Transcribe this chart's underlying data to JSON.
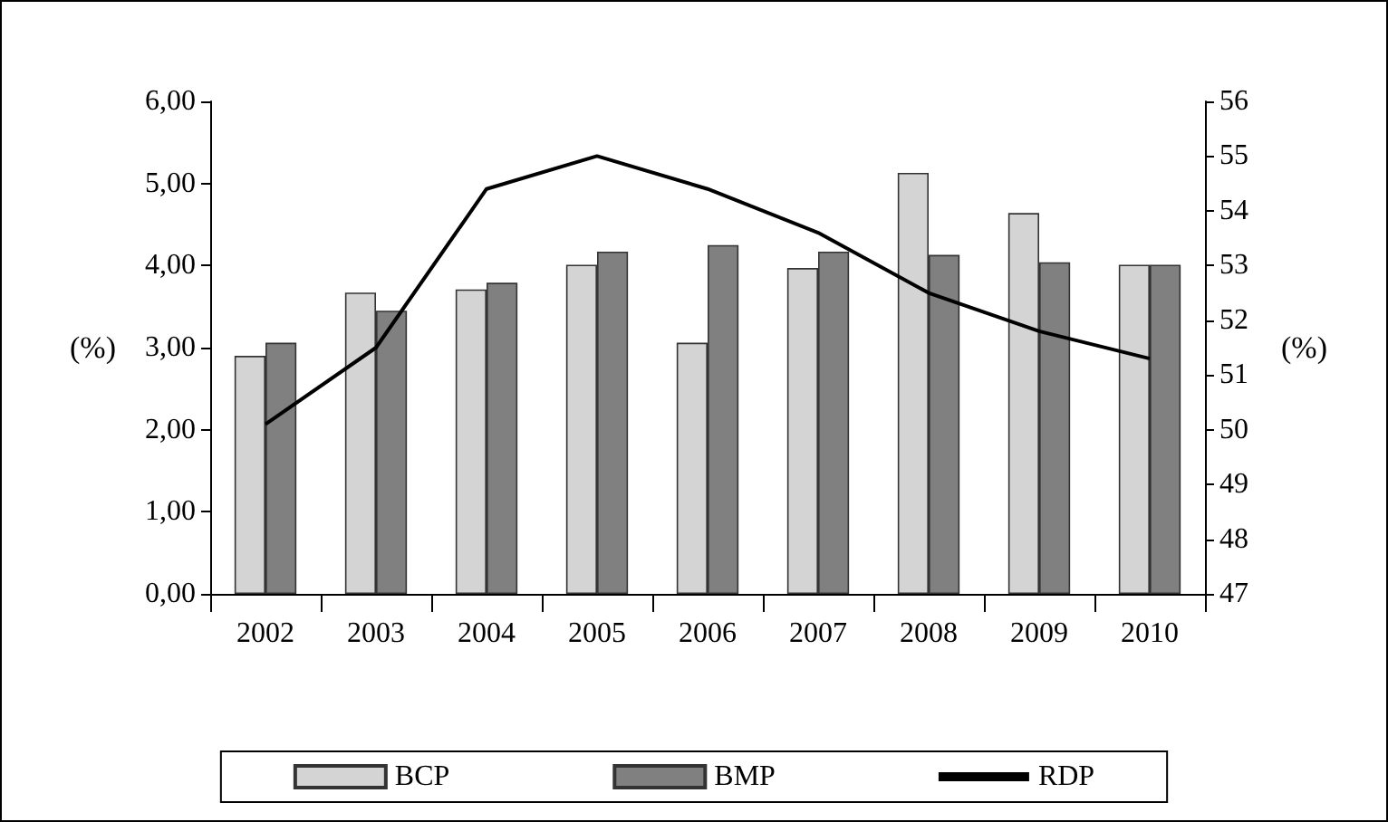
{
  "chart_data": {
    "type": "bar",
    "ylabel": "(%)",
    "y2label": "(%)",
    "categories": [
      "2002",
      "2003",
      "2004",
      "2005",
      "2006",
      "2007",
      "2008",
      "2009",
      "2010"
    ],
    "series": [
      {
        "name": "BCP",
        "color": "#d4d4d4",
        "values": [
          2.9,
          3.67,
          3.71,
          4.01,
          3.06,
          3.97,
          5.13,
          4.64,
          4.01
        ]
      },
      {
        "name": "BMP",
        "color": "#808080",
        "values": [
          3.06,
          3.45,
          3.79,
          4.17,
          4.25,
          4.17,
          4.13,
          4.04,
          4.01
        ]
      },
      {
        "name": "RDP",
        "type": "line",
        "axis": "y2",
        "color": "#000000",
        "values": [
          50.1,
          51.5,
          54.4,
          55.0,
          54.4,
          53.6,
          52.5,
          51.8,
          51.3
        ]
      }
    ],
    "ylim": [
      0,
      6
    ],
    "yticks": [
      {
        "value": 0,
        "label": "0,00"
      },
      {
        "value": 1,
        "label": "1,00"
      },
      {
        "value": 2,
        "label": "2,00"
      },
      {
        "value": 3,
        "label": "3,00"
      },
      {
        "value": 4,
        "label": "4,00"
      },
      {
        "value": 5,
        "label": "5,00"
      },
      {
        "value": 6,
        "label": "6,00"
      }
    ],
    "y2lim": [
      47,
      56
    ],
    "y2ticks": [
      47,
      48,
      49,
      50,
      51,
      52,
      53,
      54,
      55,
      56
    ],
    "grid": false,
    "legend": "bottom",
    "marker": "none",
    "line_style": "solid"
  }
}
